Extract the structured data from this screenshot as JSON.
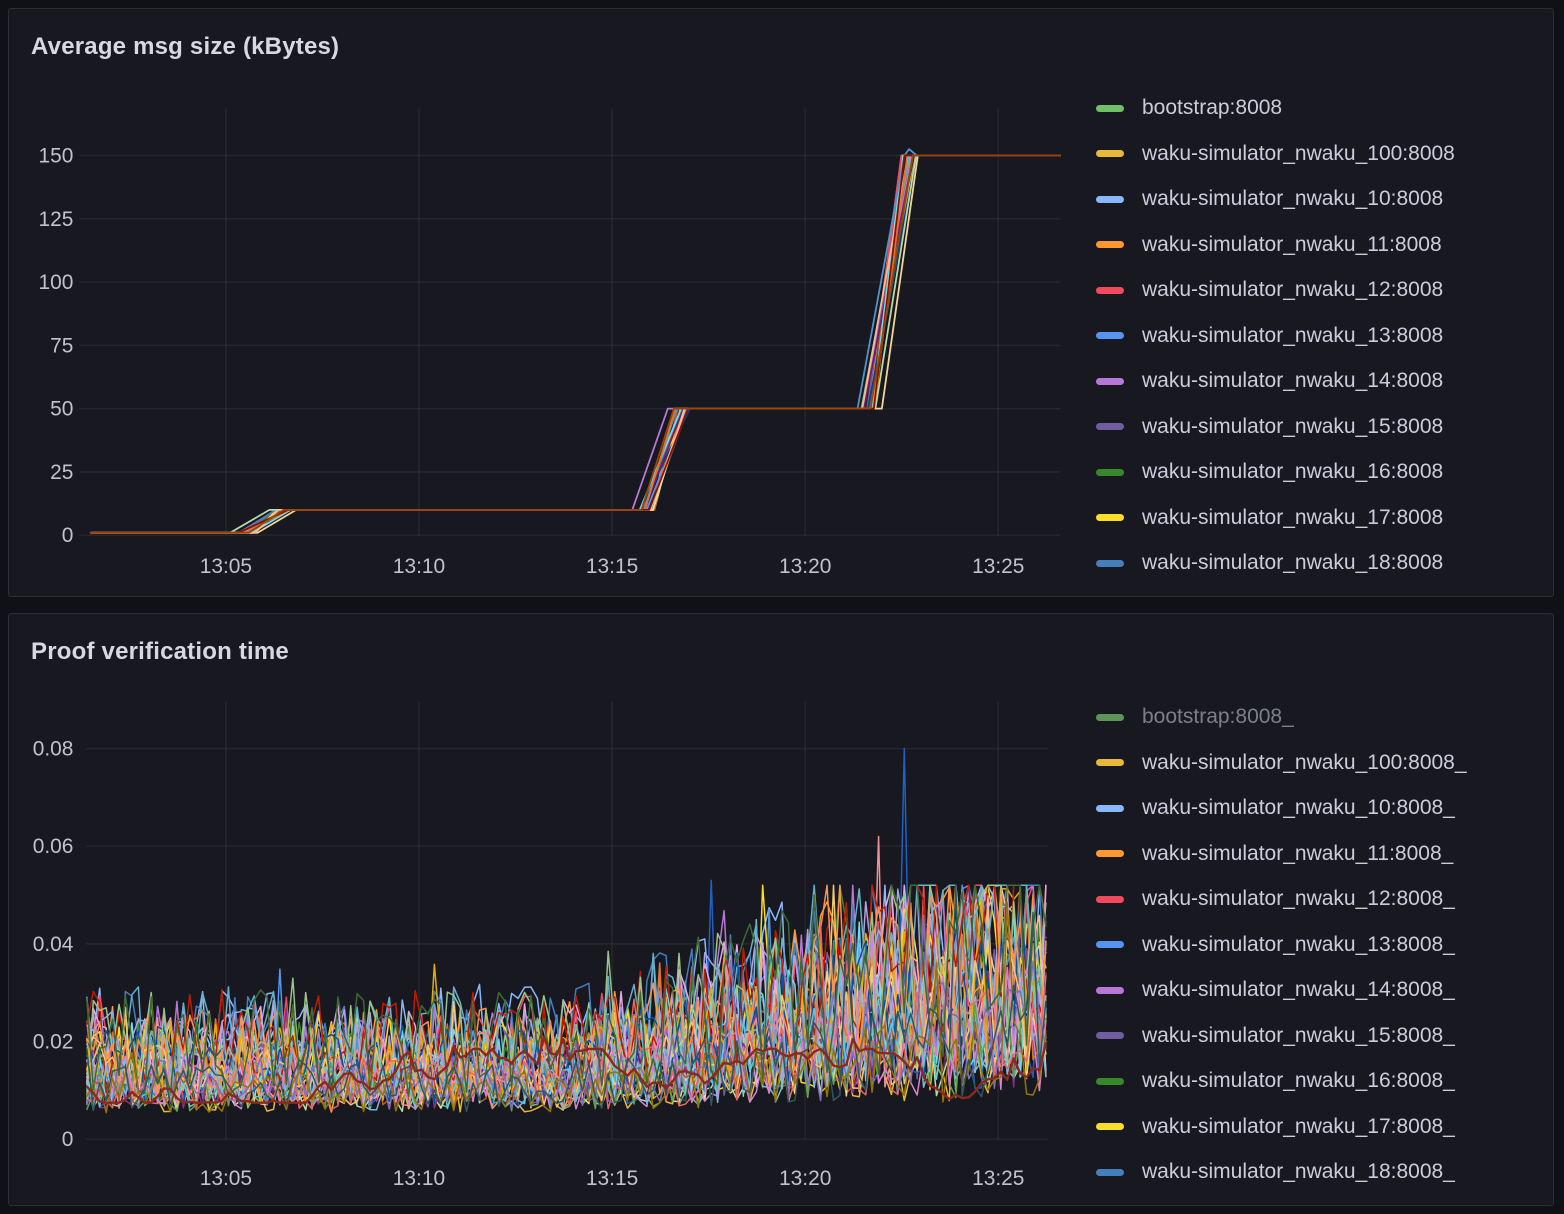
{
  "page": {
    "background": "#101116",
    "panel_background": "#181920",
    "panel_border": "#2c2e36",
    "text_color": "#ccccdc",
    "grid_color": "rgba(204,204,220,0.08)"
  },
  "panels": {
    "msg_size": {
      "title": "Average msg size (kBytes)",
      "legend": [
        {
          "label": "bootstrap:8008",
          "color": "#73BF69",
          "dimmed": false
        },
        {
          "label": "waku-simulator_nwaku_100:8008",
          "color": "#EAB839",
          "dimmed": false
        },
        {
          "label": "waku-simulator_nwaku_10:8008",
          "color": "#8AB8FF",
          "dimmed": false
        },
        {
          "label": "waku-simulator_nwaku_11:8008",
          "color": "#FF9830",
          "dimmed": false
        },
        {
          "label": "waku-simulator_nwaku_12:8008",
          "color": "#F2495C",
          "dimmed": false
        },
        {
          "label": "waku-simulator_nwaku_13:8008",
          "color": "#5794F2",
          "dimmed": false
        },
        {
          "label": "waku-simulator_nwaku_14:8008",
          "color": "#B877D9",
          "dimmed": false
        },
        {
          "label": "waku-simulator_nwaku_15:8008",
          "color": "#705DA0",
          "dimmed": false
        },
        {
          "label": "waku-simulator_nwaku_16:8008",
          "color": "#37872D",
          "dimmed": false
        },
        {
          "label": "waku-simulator_nwaku_17:8008",
          "color": "#FADE2A",
          "dimmed": false
        },
        {
          "label": "waku-simulator_nwaku_18:8008",
          "color": "#447EBC",
          "dimmed": false
        }
      ],
      "chart_data": {
        "type": "line",
        "title": "Average msg size (kBytes)",
        "x_ticks": [
          "13:05",
          "13:10",
          "13:15",
          "13:20",
          "13:25"
        ],
        "x_tick_minutes": [
          785,
          790,
          795,
          800,
          805
        ],
        "x_start_min": 781.5,
        "x_end_min": 806.6,
        "y_ticks": [
          0,
          25,
          50,
          75,
          100,
          125,
          150
        ],
        "ylim": [
          0,
          155
        ],
        "grid": true,
        "legend_position": "right",
        "series_note": "~100 overlapping node series; every series follows the same step profile: ~1 kB until 13:06, ~10 kB until 13:16, ~50 kB until 13:22, then 150 kB",
        "base_value_kbytes": 1,
        "steps": [
          {
            "start_min": 785.55,
            "end_min": 786.5,
            "value_kbytes": 10
          },
          {
            "start_min": 795.9,
            "end_min": 796.8,
            "value_kbytes": 50
          },
          {
            "start_min": 801.6,
            "end_min": 802.7,
            "value_kbytes": 150
          }
        ],
        "jitter_min": 0.22,
        "seed": 42,
        "draw_colors": [
          "#73BF69",
          "#EAB839",
          "#8AB8FF",
          "#FF9830",
          "#F2495C",
          "#5794F2",
          "#B877D9",
          "#705DA0",
          "#37872D",
          "#FADE2A",
          "#447EBC",
          "#C15C17",
          "#0A437C",
          "#6D1F62",
          "#B7DBAB",
          "#F4D598",
          "#70DBED",
          "#F9BA8F",
          "#5195CE",
          "#E0752D",
          "#890F02",
          "#99440A"
        ],
        "features": [
          {
            "color": "#B7DBAB",
            "offsets": [
              -0.35,
              0,
              0
            ]
          },
          {
            "color": "#B877D9",
            "offsets": [
              0,
              -0.4,
              0
            ]
          },
          {
            "color": "#F4D598",
            "offsets": [
              0.3,
              0.25,
              0.3
            ]
          },
          {
            "color": "#5195CE",
            "offsets": [
              0,
              0,
              -0.3
            ],
            "overshoot": 152.5
          }
        ]
      }
    },
    "proof_time": {
      "title": "Proof verification time",
      "legend": [
        {
          "label": "bootstrap:8008_",
          "color": "#73BF69",
          "dimmed": true
        },
        {
          "label": "waku-simulator_nwaku_100:8008_",
          "color": "#EAB839",
          "dimmed": false
        },
        {
          "label": "waku-simulator_nwaku_10:8008_",
          "color": "#8AB8FF",
          "dimmed": false
        },
        {
          "label": "waku-simulator_nwaku_11:8008_",
          "color": "#FF9830",
          "dimmed": false
        },
        {
          "label": "waku-simulator_nwaku_12:8008_",
          "color": "#F2495C",
          "dimmed": false
        },
        {
          "label": "waku-simulator_nwaku_13:8008_",
          "color": "#5794F2",
          "dimmed": false
        },
        {
          "label": "waku-simulator_nwaku_14:8008_",
          "color": "#B877D9",
          "dimmed": false
        },
        {
          "label": "waku-simulator_nwaku_15:8008_",
          "color": "#705DA0",
          "dimmed": false
        },
        {
          "label": "waku-simulator_nwaku_16:8008_",
          "color": "#37872D",
          "dimmed": false
        },
        {
          "label": "waku-simulator_nwaku_17:8008_",
          "color": "#FADE2A",
          "dimmed": false
        },
        {
          "label": "waku-simulator_nwaku_18:8008_",
          "color": "#447EBC",
          "dimmed": false
        }
      ],
      "chart_data": {
        "type": "line",
        "title": "Proof verification time",
        "x_ticks": [
          "13:05",
          "13:10",
          "13:15",
          "13:20",
          "13:25"
        ],
        "x_tick_minutes": [
          785,
          790,
          795,
          800,
          805
        ],
        "x_start_min": 781.4,
        "x_end_min": 806.3,
        "y_ticks": [
          0,
          0.02,
          0.04,
          0.06,
          0.08
        ],
        "ylim": [
          0,
          0.088
        ],
        "grid": true,
        "legend_position": "right",
        "series_note": "~100 overlapping noisy series oscillating between ~0.004 and ~0.025 s before 13:14; amplitude grows afterwards with frequent spikes to ~0.05 s",
        "point_interval_min": 0.1667,
        "ramp_start_min": 794,
        "noise_band": {
          "early_min": 0.004,
          "early_max": 0.025,
          "late_typical_max": 0.05
        },
        "seed": 1337,
        "draw_colors": [
          "#73BF69",
          "#EAB839",
          "#8AB8FF",
          "#FF9830",
          "#F2495C",
          "#5794F2",
          "#B877D9",
          "#705DA0",
          "#37872D",
          "#FADE2A",
          "#447EBC",
          "#C15C17",
          "#1F60C4",
          "#6D1F62",
          "#B7DBAB",
          "#F4D598",
          "#70DBED",
          "#F9BA8F",
          "#5195CE",
          "#E0752D",
          "#962D82",
          "#F29191",
          "#82B5D8",
          "#E5A8E2",
          "#AEA2E0",
          "#629E51",
          "#E5AC0E",
          "#64B0C8",
          "#BF1B00",
          "#0A50A1",
          "#9AC48A",
          "#F2C96D",
          "#65C5DB",
          "#F9934E",
          "#EA6460",
          "#D683CE",
          "#806EB7",
          "#3F6833",
          "#967302",
          "#2F575E"
        ],
        "notable_spikes": [
          {
            "minute": 802.6,
            "value": 0.08,
            "series_index": 12
          },
          {
            "minute": 801.9,
            "value": 0.062,
            "series_index": 21
          },
          {
            "minute": 797.6,
            "value": 0.053,
            "series_index": 12
          }
        ],
        "highlight_series": {
          "color": "#8A2A1C",
          "mean": 0.0125,
          "variation": 0.005,
          "stroke_width": 2.4,
          "note": "smoother dark-red line weaving through the noise"
        }
      }
    }
  }
}
